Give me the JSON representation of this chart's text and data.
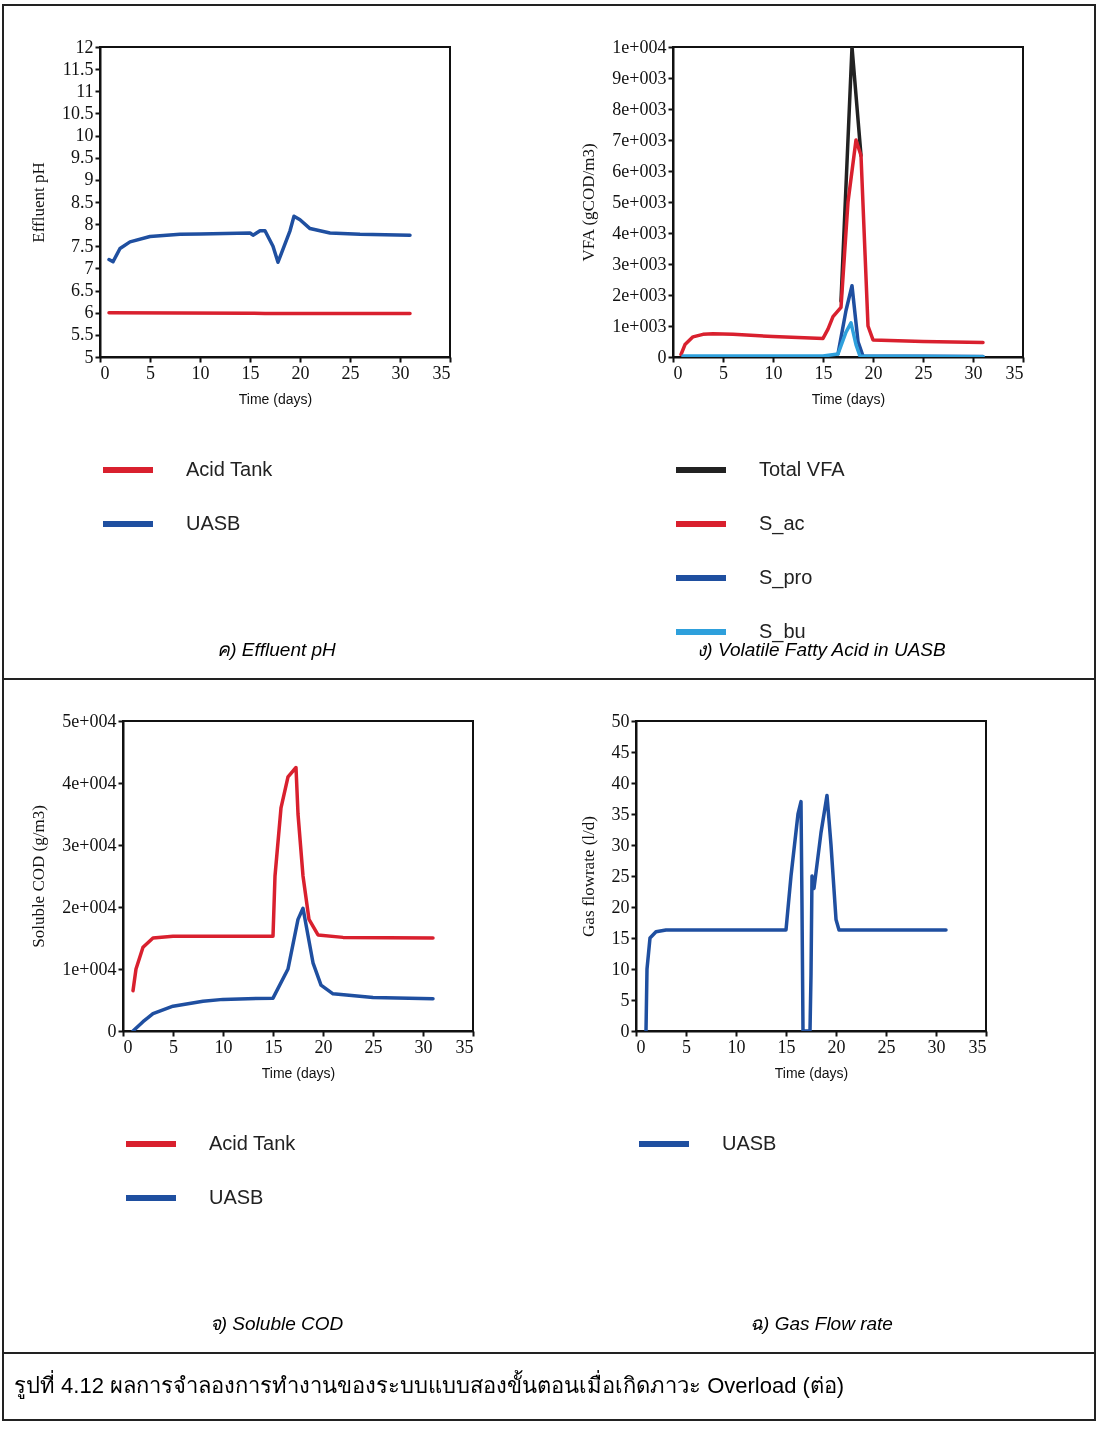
{
  "chart_data": [
    {
      "type": "line",
      "xlabel": "Time (days)",
      "ylabel": "Effluent pH",
      "xlim": [
        0,
        35
      ],
      "xticks": [
        0,
        5,
        10,
        15,
        20,
        25,
        30,
        35
      ],
      "ylim": [
        5,
        12
      ],
      "yticks": [
        5,
        5.5,
        6,
        6.5,
        7,
        7.5,
        8,
        8.5,
        9,
        9.5,
        10,
        10.5,
        11,
        11.5,
        12
      ],
      "grid": false,
      "legend": "bottom",
      "annotations": [
        "ค) Effluent pH"
      ],
      "series": [
        {
          "name": "Acid Tank",
          "color": "#d9202e",
          "x": [
            0.9,
            15,
            16.5,
            31
          ],
          "values": [
            6.0,
            5.99,
            5.98,
            5.98
          ]
        },
        {
          "name": "UASB",
          "color": "#1f4fa0",
          "x": [
            0.9,
            1.3,
            2,
            3,
            5,
            8,
            10,
            15,
            15.3,
            16,
            16.5,
            17.3,
            17.8,
            19,
            19.4,
            20,
            21,
            23,
            26,
            31
          ],
          "values": [
            7.2,
            7.15,
            7.45,
            7.6,
            7.72,
            7.77,
            7.78,
            7.8,
            7.75,
            7.85,
            7.85,
            7.5,
            7.14,
            7.85,
            8.18,
            8.1,
            7.9,
            7.8,
            7.77,
            7.75
          ]
        }
      ]
    },
    {
      "type": "line",
      "xlabel": "Time (days)",
      "ylabel": "VFA (gCOD/m3)",
      "xlim": [
        0,
        35
      ],
      "xticks": [
        0,
        5,
        10,
        15,
        20,
        25,
        30,
        35
      ],
      "ylim": [
        0,
        10000
      ],
      "yticks": [
        0,
        {
          "value": 1000,
          "label": "1e+003"
        },
        {
          "value": 2000,
          "label": "2e+003"
        },
        {
          "value": 3000,
          "label": "3e+003"
        },
        {
          "value": 4000,
          "label": "4e+003"
        },
        {
          "value": 5000,
          "label": "5e+003"
        },
        {
          "value": 6000,
          "label": "6e+003"
        },
        {
          "value": 7000,
          "label": "7e+003"
        },
        {
          "value": 8000,
          "label": "8e+003"
        },
        {
          "value": 9000,
          "label": "9e+003"
        },
        {
          "value": 10000,
          "label": "1e+004"
        }
      ],
      "grid": false,
      "legend": "bottom",
      "annotations": [
        "ง) Volatile Fatty Acid in UASB"
      ],
      "series": [
        {
          "name": "Total VFA",
          "color": "#222222",
          "x": [
            16.8,
            17.9,
            18.8
          ],
          "values": [
            1800,
            10000,
            6500
          ]
        },
        {
          "name": "S_ac",
          "color": "#d9202e",
          "x": [
            0.8,
            1.2,
            2,
            3,
            4,
            6,
            10,
            15,
            15.5,
            16,
            16.8,
            17.5,
            18.3,
            18.8,
            19.5,
            20,
            25,
            31
          ],
          "values": [
            80,
            400,
            650,
            730,
            750,
            730,
            660,
            600,
            900,
            1300,
            1600,
            5000,
            7000,
            6500,
            1000,
            550,
            500,
            470
          ]
        },
        {
          "name": "S_pro",
          "color": "#1f4fa0",
          "x": [
            16.5,
            17.3,
            17.9,
            18.5,
            19,
            31
          ],
          "values": [
            100,
            1500,
            2300,
            500,
            30,
            20
          ]
        },
        {
          "name": "S_bu",
          "color": "#2ea0dc",
          "x": [
            1,
            15,
            16.5,
            17.3,
            17.8,
            18.3,
            18.7,
            31
          ],
          "values": [
            30,
            30,
            100,
            800,
            1100,
            400,
            30,
            10
          ]
        }
      ]
    },
    {
      "type": "line",
      "xlabel": "Time (days)",
      "ylabel": "Soluble COD (g/m3)",
      "xlim": [
        0,
        35
      ],
      "xticks": [
        0,
        5,
        10,
        15,
        20,
        25,
        30,
        35
      ],
      "ylim": [
        0,
        50000
      ],
      "yticks": [
        0,
        {
          "value": 10000,
          "label": "1e+004"
        },
        {
          "value": 20000,
          "label": "2e+004"
        },
        {
          "value": 30000,
          "label": "3e+004"
        },
        {
          "value": 40000,
          "label": "4e+004"
        },
        {
          "value": 50000,
          "label": "5e+004"
        }
      ],
      "grid": false,
      "legend": "bottom",
      "annotations": [
        "จ) Soluble COD"
      ],
      "series": [
        {
          "name": "Acid Tank",
          "color": "#d9202e",
          "x": [
            1,
            1.3,
            2,
            3,
            5,
            15,
            15.2,
            15.8,
            16.5,
            17.3,
            17.5,
            18,
            18.6,
            19.5,
            22,
            31
          ],
          "values": [
            6500,
            10000,
            13500,
            15000,
            15300,
            15300,
            25000,
            36000,
            41000,
            42500,
            35000,
            25000,
            18000,
            15500,
            15100,
            15000
          ]
        },
        {
          "name": "UASB",
          "color": "#1f4fa0",
          "x": [
            1,
            2,
            3,
            5,
            8,
            10,
            15,
            16.5,
            17.5,
            18,
            19,
            19.8,
            21,
            25,
            31
          ],
          "values": [
            0,
            1500,
            2800,
            4000,
            4800,
            5100,
            5300,
            10000,
            18000,
            19800,
            11000,
            7400,
            6000,
            5400,
            5200
          ]
        }
      ]
    },
    {
      "type": "line",
      "xlabel": "Time (days)",
      "ylabel": "Gas flowrate (l/d)",
      "xlim": [
        0,
        35
      ],
      "xticks": [
        0,
        5,
        10,
        15,
        20,
        25,
        30,
        35
      ],
      "ylim": [
        0,
        50
      ],
      "yticks": [
        0,
        5,
        10,
        15,
        20,
        25,
        30,
        35,
        40,
        45,
        50
      ],
      "grid": false,
      "legend": "bottom",
      "annotations": [
        "ฉ) Gas Flow rate",
        "รูปที่ 4.12  ผลการจำลองการทำงานของระบบแบบสองขั้นตอนเมื่อเกิดภาวะ Overload (ต่อ)"
      ],
      "series": [
        {
          "name": "UASB",
          "color": "#1f4fa0",
          "x": [
            1,
            1.1,
            1.4,
            2,
            3,
            15,
            15.5,
            16.2,
            16.5,
            16.6,
            16.7,
            17.4,
            17.5,
            17.6,
            17.8,
            18.5,
            19.1,
            19.5,
            20,
            20.3,
            31
          ],
          "values": [
            0,
            10,
            15,
            16,
            16.3,
            16.3,
            25,
            35,
            37,
            20,
            0,
            0,
            9,
            25,
            23,
            32,
            38,
            30,
            18,
            16.3,
            16.3
          ]
        }
      ]
    }
  ]
}
